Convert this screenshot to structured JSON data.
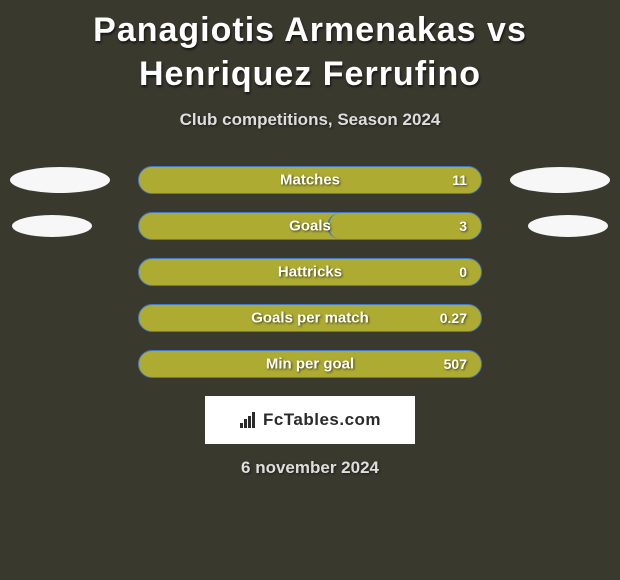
{
  "title": "Panagiotis Armenakas vs Henriquez Ferrufino",
  "subtitle": "Club competitions, Season 2024",
  "bar_background_color": "#adab32",
  "bar_accent_outline_color": "#447ac4",
  "side_bubble_color": "#f7f7f7",
  "page_background_color": "#39392e",
  "stats": [
    {
      "label": "Matches",
      "value": "11",
      "fill_pct": 100,
      "left_bubble": "large",
      "right_bubble": "large"
    },
    {
      "label": "Goals",
      "value": "3",
      "fill_pct": 45,
      "left_bubble": "small",
      "right_bubble": "small"
    },
    {
      "label": "Hattricks",
      "value": "0",
      "fill_pct": 0,
      "left_bubble": "none",
      "right_bubble": "none"
    },
    {
      "label": "Goals per match",
      "value": "0.27",
      "fill_pct": 0,
      "left_bubble": "none",
      "right_bubble": "none"
    },
    {
      "label": "Min per goal",
      "value": "507",
      "fill_pct": 0,
      "left_bubble": "none",
      "right_bubble": "none"
    }
  ],
  "brand": {
    "name_text": "FcTables.com"
  },
  "date_text": "6 november 2024"
}
